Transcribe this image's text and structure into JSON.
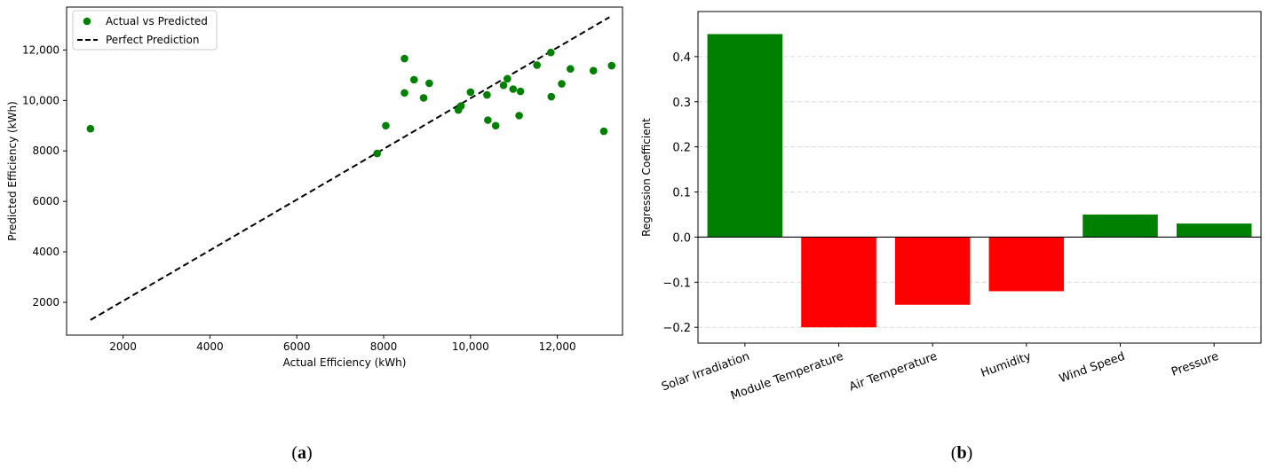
{
  "chart_data": [
    {
      "type": "scatter",
      "panel_label_prefix": "(",
      "panel_label_letter": "a",
      "panel_label_suffix": ")",
      "xlabel": "Actual Efficiency (kWh)",
      "ylabel": "Predicted Efficiency (kWh)",
      "xlim": [
        700,
        13500
      ],
      "ylim": [
        700,
        13700
      ],
      "x_ticks": [
        2000,
        4000,
        6000,
        8000,
        10000,
        12000
      ],
      "x_tick_labels": [
        "2000",
        "4000",
        "6000",
        "8000",
        "10,000",
        "12,000"
      ],
      "y_ticks": [
        2000,
        4000,
        6000,
        8000,
        10000,
        12000
      ],
      "y_tick_labels": [
        "2000",
        "4000",
        "6000",
        "8000",
        "10,000",
        "12,000"
      ],
      "grid": false,
      "legend_position": "top-left",
      "series": [
        {
          "name": "Actual vs Predicted",
          "color": "#008000",
          "points": [
            [
              1250,
              8880
            ],
            [
              7850,
              7900
            ],
            [
              8050,
              9000
            ],
            [
              8480,
              11660
            ],
            [
              8480,
              10300
            ],
            [
              8700,
              10820
            ],
            [
              8920,
              10100
            ],
            [
              9050,
              10680
            ],
            [
              9720,
              9620
            ],
            [
              9780,
              9780
            ],
            [
              10000,
              10330
            ],
            [
              10380,
              10220
            ],
            [
              10400,
              9220
            ],
            [
              10580,
              9000
            ],
            [
              10760,
              10600
            ],
            [
              10850,
              10860
            ],
            [
              10980,
              10450
            ],
            [
              11120,
              9400
            ],
            [
              11150,
              10360
            ],
            [
              11530,
              11400
            ],
            [
              11850,
              11900
            ],
            [
              11860,
              10150
            ],
            [
              12100,
              10660
            ],
            [
              12300,
              11250
            ],
            [
              12830,
              11180
            ],
            [
              13070,
              8780
            ],
            [
              13250,
              11380
            ]
          ]
        },
        {
          "name": "Perfect Prediction",
          "color": "#000000",
          "line_style": "dashed",
          "line": [
            [
              1250,
              1300
            ],
            [
              13200,
              13300
            ]
          ]
        }
      ]
    },
    {
      "type": "bar",
      "panel_label_prefix": "(",
      "panel_label_letter": "b",
      "panel_label_suffix": ")",
      "xlabel": "",
      "ylabel": "Regression Coefficient",
      "ylim": [
        -0.235,
        0.5
      ],
      "y_ticks": [
        -0.2,
        -0.1,
        0.0,
        0.1,
        0.2,
        0.3,
        0.4
      ],
      "y_tick_labels": [
        "−0.2",
        "−0.1",
        "0.0",
        "0.1",
        "0.2",
        "0.3",
        "0.4"
      ],
      "grid": "horizontal dashed",
      "categories": [
        "Solar Irradiation",
        "Module Temperature",
        "Air Temperature",
        "Humidity",
        "Wind Speed",
        "Pressure"
      ],
      "values": [
        0.45,
        -0.2,
        -0.15,
        -0.12,
        0.05,
        0.03
      ],
      "positive_color": "#008000",
      "negative_color": "#ff0000"
    }
  ]
}
